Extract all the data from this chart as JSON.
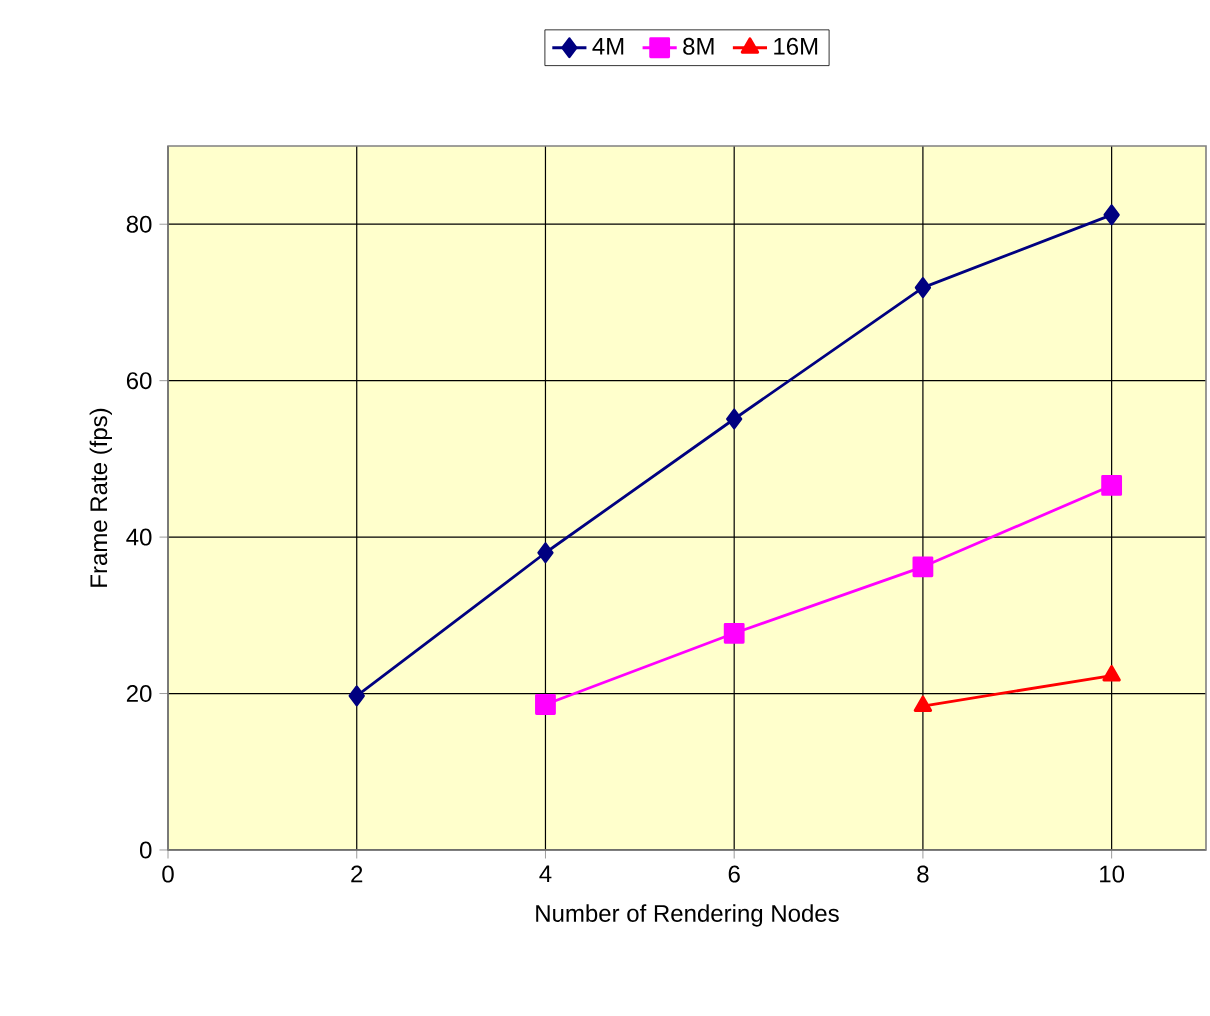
{
  "chart_data": {
    "type": "line",
    "xlabel": "Number of Rendering Nodes",
    "ylabel": "Frame Rate (fps)",
    "xlim": [
      0,
      11
    ],
    "ylim": [
      0,
      90
    ],
    "xticks": [
      0,
      2,
      4,
      6,
      8,
      10
    ],
    "yticks": [
      0,
      20,
      40,
      60,
      80
    ],
    "grid": true,
    "legend": "top",
    "series": [
      {
        "name": "4M",
        "color": "#000080",
        "marker": "diamond",
        "x": [
          2,
          4,
          6,
          8,
          10
        ],
        "values": [
          19.7,
          38.0,
          55.1,
          71.9,
          81.2
        ]
      },
      {
        "name": "8M",
        "color": "#ff00ff",
        "marker": "square",
        "x": [
          4,
          6,
          8,
          10
        ],
        "values": [
          18.6,
          27.7,
          36.2,
          46.6
        ]
      },
      {
        "name": "16M",
        "color": "#ff0000",
        "marker": "triangle",
        "x": [
          8,
          10
        ],
        "values": [
          18.4,
          22.3
        ]
      }
    ]
  }
}
